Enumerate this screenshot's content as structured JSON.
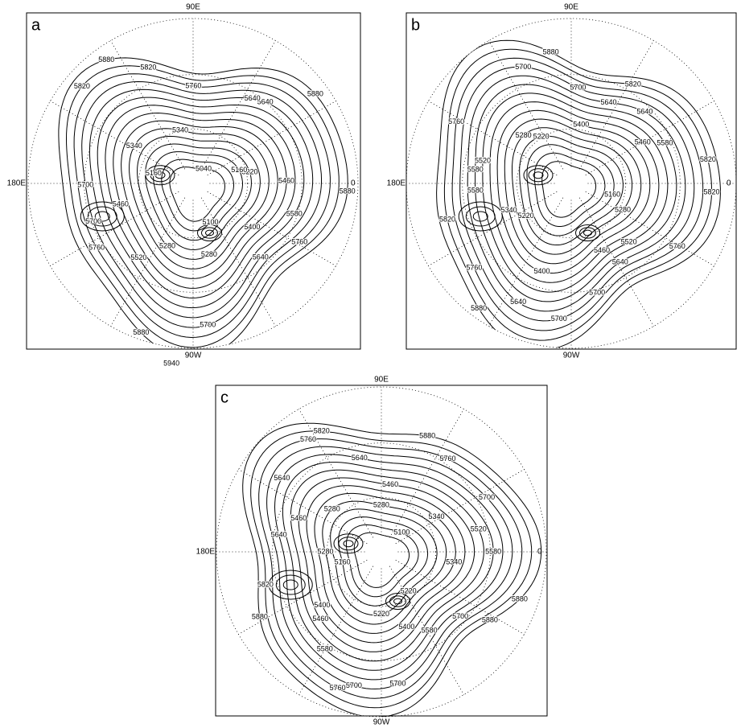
{
  "contour_levels": [
    5040,
    5100,
    5160,
    5220,
    5280,
    5340,
    5400,
    5460,
    5520,
    5580,
    5640,
    5700,
    5760,
    5820,
    5880
  ],
  "panels": [
    {
      "label": "a",
      "top_label": "90E",
      "left_label": "180E",
      "right_label": "0",
      "bottom_label": "90W",
      "contour_labels": [
        5880,
        5820,
        5700,
        5640,
        5460,
        5400,
        5340,
        5280,
        5220,
        5160,
        5100,
        5040,
        5760,
        5580,
        5880,
        5940,
        5880,
        5700,
        5640,
        5760,
        5520,
        5460,
        5340,
        5280,
        5640,
        5700,
        5760,
        5820,
        5880,
        5160
      ]
    },
    {
      "label": "b",
      "top_label": "90E",
      "left_label": "180E",
      "right_label": "0",
      "bottom_label": "90W",
      "contour_labels": [
        5820,
        5820,
        5760,
        5700,
        5640,
        5580,
        5520,
        5460,
        5400,
        5220,
        5160,
        5280,
        5700,
        5640,
        5580,
        5520,
        5880,
        5880,
        5820,
        5760,
        5700,
        5640,
        5340,
        5280,
        5220,
        5400,
        5460,
        5580,
        5640,
        5700,
        5760,
        5820
      ]
    },
    {
      "label": "c",
      "top_label": "90E",
      "left_label": "180E",
      "right_label": "0",
      "bottom_label": "90W",
      "contour_labels": [
        5820,
        5760,
        5700,
        5640,
        5580,
        5460,
        5400,
        5340,
        5280,
        5220,
        5100,
        5160,
        5700,
        5640,
        5580,
        5520,
        5460,
        5400,
        5880,
        5880,
        5880,
        5760,
        5700,
        5340,
        5280,
        5220,
        5280,
        5460,
        5580,
        5640,
        5700,
        5760,
        5820,
        5880
      ]
    }
  ]
}
